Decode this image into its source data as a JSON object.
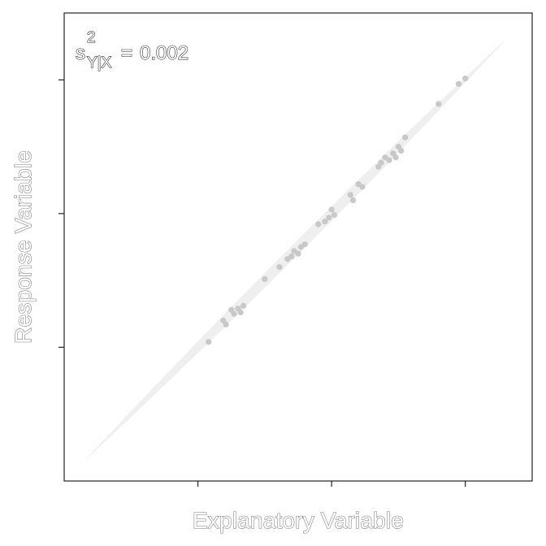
{
  "chart_data": {
    "type": "scatter",
    "xlabel": "Explanatory Variable",
    "ylabel": "Response Variable",
    "annotation": {
      "symbol": "s",
      "superscript": "2",
      "subscript": "Y|X",
      "equals": "=",
      "value": "0.002"
    },
    "xlim": [
      -0.5,
      3.0
    ],
    "ylim": [
      -0.5,
      3.0
    ],
    "x_ticks": [
      0.5,
      1.5,
      2.5
    ],
    "y_ticks": [
      0.5,
      1.5,
      2.5
    ],
    "tick_labels_shown": false,
    "grid": false,
    "legend": "none",
    "band": {
      "from": [
        -0.35,
        -0.35
      ],
      "to": [
        2.82,
        2.82
      ],
      "half_width": 0.05
    },
    "x": [
      0.58,
      0.69,
      0.71,
      0.75,
      0.77,
      0.8,
      0.82,
      0.84,
      1.0,
      1.11,
      1.17,
      1.2,
      1.22,
      1.25,
      1.27,
      1.3,
      1.4,
      1.45,
      1.48,
      1.5,
      1.52,
      1.64,
      1.66,
      1.7,
      1.73,
      1.85,
      1.87,
      1.9,
      1.93,
      1.96,
      1.98,
      2.0,
      2.02,
      2.05,
      2.3,
      2.45,
      2.5
    ],
    "y": [
      0.54,
      0.7,
      0.67,
      0.78,
      0.75,
      0.79,
      0.76,
      0.81,
      1.01,
      1.1,
      1.16,
      1.18,
      1.22,
      1.2,
      1.25,
      1.27,
      1.42,
      1.44,
      1.47,
      1.53,
      1.49,
      1.64,
      1.6,
      1.72,
      1.7,
      1.85,
      1.88,
      1.92,
      1.9,
      1.95,
      1.92,
      2.0,
      1.97,
      2.07,
      2.32,
      2.47,
      2.51
    ],
    "colors": {
      "points": "#c8c8c8",
      "band": "#efefef",
      "axis": "#222222"
    }
  }
}
